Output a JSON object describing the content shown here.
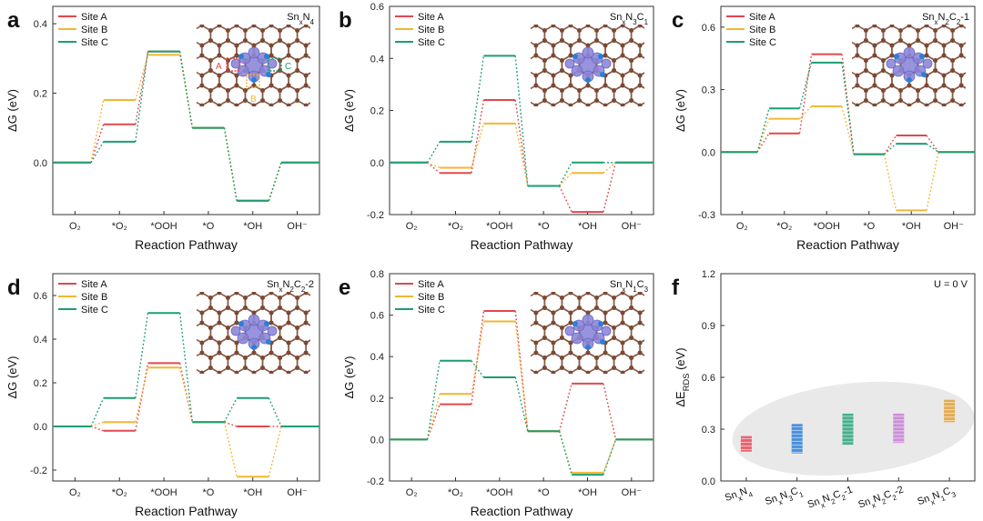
{
  "xlabel": "Reaction Pathway",
  "ylabel_dg": "ΔG (eV)",
  "steps": [
    "O₂",
    "*O₂",
    "*OOH",
    "*O",
    "*OH",
    "OH⁻"
  ],
  "site_colors": {
    "Site A": "#e0484e",
    "Site B": "#f2b632",
    "Site C": "#1a9e70"
  },
  "struct_colors": {
    "bond": "#8a5a44",
    "atom": "#7a4a35",
    "metal": "#8c87d9",
    "accent": "#2a80d8"
  },
  "chart_data": [
    {
      "panel": "a",
      "type": "line",
      "title": "SnxN4",
      "title_parts": [
        [
          "Sn",
          ""
        ],
        [
          "x",
          "sub"
        ],
        [
          "N",
          ""
        ],
        [
          "4",
          "sub"
        ]
      ],
      "ylim": [
        -0.15,
        0.45
      ],
      "yticks": [
        0.0,
        0.2,
        0.4
      ],
      "ydec": 1,
      "series": [
        {
          "name": "Site A",
          "values": [
            0,
            0.11,
            0.32,
            0.1,
            -0.11,
            0
          ]
        },
        {
          "name": "Site B",
          "values": [
            0,
            0.18,
            0.31,
            0.1,
            -0.11,
            0
          ]
        },
        {
          "name": "Site C",
          "values": [
            0,
            0.06,
            0.32,
            0.1,
            -0.11,
            0
          ]
        }
      ],
      "annotations": [
        "A",
        "B",
        "C"
      ]
    },
    {
      "panel": "b",
      "type": "line",
      "title": "SnxN3C1",
      "title_parts": [
        [
          "Sn",
          ""
        ],
        [
          "x",
          "sub"
        ],
        [
          "N",
          ""
        ],
        [
          "3",
          "sub"
        ],
        [
          "C",
          ""
        ],
        [
          "1",
          "sub"
        ]
      ],
      "ylim": [
        -0.2,
        0.6
      ],
      "yticks": [
        -0.2,
        0.0,
        0.2,
        0.4,
        0.6
      ],
      "ydec": 1,
      "series": [
        {
          "name": "Site A",
          "values": [
            0,
            -0.04,
            0.24,
            -0.09,
            -0.19,
            0
          ]
        },
        {
          "name": "Site B",
          "values": [
            0,
            -0.02,
            0.15,
            -0.09,
            -0.04,
            0
          ]
        },
        {
          "name": "Site C",
          "values": [
            0,
            0.08,
            0.41,
            -0.09,
            0.0,
            0
          ]
        }
      ]
    },
    {
      "panel": "c",
      "type": "line",
      "title": "SnxN2C2-1",
      "title_parts": [
        [
          "Sn",
          ""
        ],
        [
          "x",
          "sub"
        ],
        [
          "N",
          ""
        ],
        [
          "2",
          "sub"
        ],
        [
          "C",
          ""
        ],
        [
          "2",
          "sub"
        ],
        [
          "-1",
          ""
        ]
      ],
      "ylim": [
        -0.3,
        0.7
      ],
      "yticks": [
        -0.3,
        0.0,
        0.3,
        0.6
      ],
      "ydec": 1,
      "series": [
        {
          "name": "Site A",
          "values": [
            0,
            0.09,
            0.47,
            -0.01,
            0.08,
            0
          ]
        },
        {
          "name": "Site B",
          "values": [
            0,
            0.16,
            0.22,
            -0.01,
            -0.28,
            0
          ]
        },
        {
          "name": "Site C",
          "values": [
            0,
            0.21,
            0.43,
            -0.01,
            0.04,
            0
          ]
        }
      ]
    },
    {
      "panel": "d",
      "type": "line",
      "title": "SnxN2C2-2",
      "title_parts": [
        [
          "Sn",
          ""
        ],
        [
          "x",
          "sub"
        ],
        [
          "N",
          ""
        ],
        [
          "2",
          "sub"
        ],
        [
          "C",
          ""
        ],
        [
          "2",
          "sub"
        ],
        [
          "-2",
          ""
        ]
      ],
      "ylim": [
        -0.25,
        0.7
      ],
      "yticks": [
        -0.2,
        0.0,
        0.2,
        0.4,
        0.6
      ],
      "ydec": 1,
      "series": [
        {
          "name": "Site A",
          "values": [
            0,
            -0.02,
            0.29,
            0.02,
            0.0,
            0
          ]
        },
        {
          "name": "Site B",
          "values": [
            0,
            0.02,
            0.27,
            0.02,
            -0.23,
            0
          ]
        },
        {
          "name": "Site C",
          "values": [
            0,
            0.13,
            0.52,
            0.02,
            0.13,
            0
          ]
        }
      ]
    },
    {
      "panel": "e",
      "type": "line",
      "title": "SnxN1C3",
      "title_parts": [
        [
          "Sn",
          ""
        ],
        [
          "x",
          "sub"
        ],
        [
          "N",
          ""
        ],
        [
          "1",
          "sub"
        ],
        [
          "C",
          ""
        ],
        [
          "3",
          "sub"
        ]
      ],
      "ylim": [
        -0.2,
        0.8
      ],
      "yticks": [
        -0.2,
        0.0,
        0.2,
        0.4,
        0.6,
        0.8
      ],
      "ydec": 1,
      "series": [
        {
          "name": "Site A",
          "values": [
            0,
            0.17,
            0.62,
            0.04,
            0.27,
            0
          ]
        },
        {
          "name": "Site B",
          "values": [
            0,
            0.22,
            0.57,
            0.04,
            -0.16,
            0
          ]
        },
        {
          "name": "Site C",
          "values": [
            0,
            0.38,
            0.3,
            0.04,
            -0.17,
            0
          ]
        }
      ]
    },
    {
      "panel": "f",
      "type": "bar",
      "ylabel_parts": [
        [
          "ΔE",
          ""
        ],
        [
          "RDS",
          "sub"
        ],
        [
          " (eV)",
          ""
        ]
      ],
      "note": "U = 0 V",
      "ylim": [
        0.0,
        1.2
      ],
      "yticks": [
        0.0,
        0.3,
        0.6,
        0.9,
        1.2
      ],
      "ydec": 1,
      "categories": [
        "SnxN4",
        "SnxN3C1",
        "SnxN2C2-1",
        "SnxN2C2-2",
        "SnxN1C3"
      ],
      "category_parts": [
        [
          [
            "Sn",
            ""
          ],
          [
            "x",
            "sub"
          ],
          [
            "N",
            ""
          ],
          [
            "4",
            "sub"
          ]
        ],
        [
          [
            "Sn",
            ""
          ],
          [
            "x",
            "sub"
          ],
          [
            "N",
            ""
          ],
          [
            "3",
            "sub"
          ],
          [
            "C",
            ""
          ],
          [
            "1",
            "sub"
          ]
        ],
        [
          [
            "Sn",
            ""
          ],
          [
            "x",
            "sub"
          ],
          [
            "N",
            ""
          ],
          [
            "2",
            "sub"
          ],
          [
            "C",
            ""
          ],
          [
            "2",
            "sub"
          ],
          [
            "-1",
            ""
          ]
        ],
        [
          [
            "Sn",
            ""
          ],
          [
            "x",
            "sub"
          ],
          [
            "N",
            ""
          ],
          [
            "2",
            "sub"
          ],
          [
            "C",
            ""
          ],
          [
            "2",
            "sub"
          ],
          [
            "-2",
            ""
          ]
        ],
        [
          [
            "Sn",
            ""
          ],
          [
            "x",
            "sub"
          ],
          [
            "N",
            ""
          ],
          [
            "1",
            "sub"
          ],
          [
            "C",
            ""
          ],
          [
            "3",
            "sub"
          ]
        ]
      ],
      "colors": [
        "#e94c5a",
        "#2f7fd6",
        "#2aa57a",
        "#c57fd4",
        "#e1a23a"
      ],
      "ranges": [
        [
          0.17,
          0.26
        ],
        [
          0.16,
          0.33
        ],
        [
          0.21,
          0.39
        ],
        [
          0.22,
          0.39
        ],
        [
          0.34,
          0.47
        ]
      ]
    }
  ]
}
